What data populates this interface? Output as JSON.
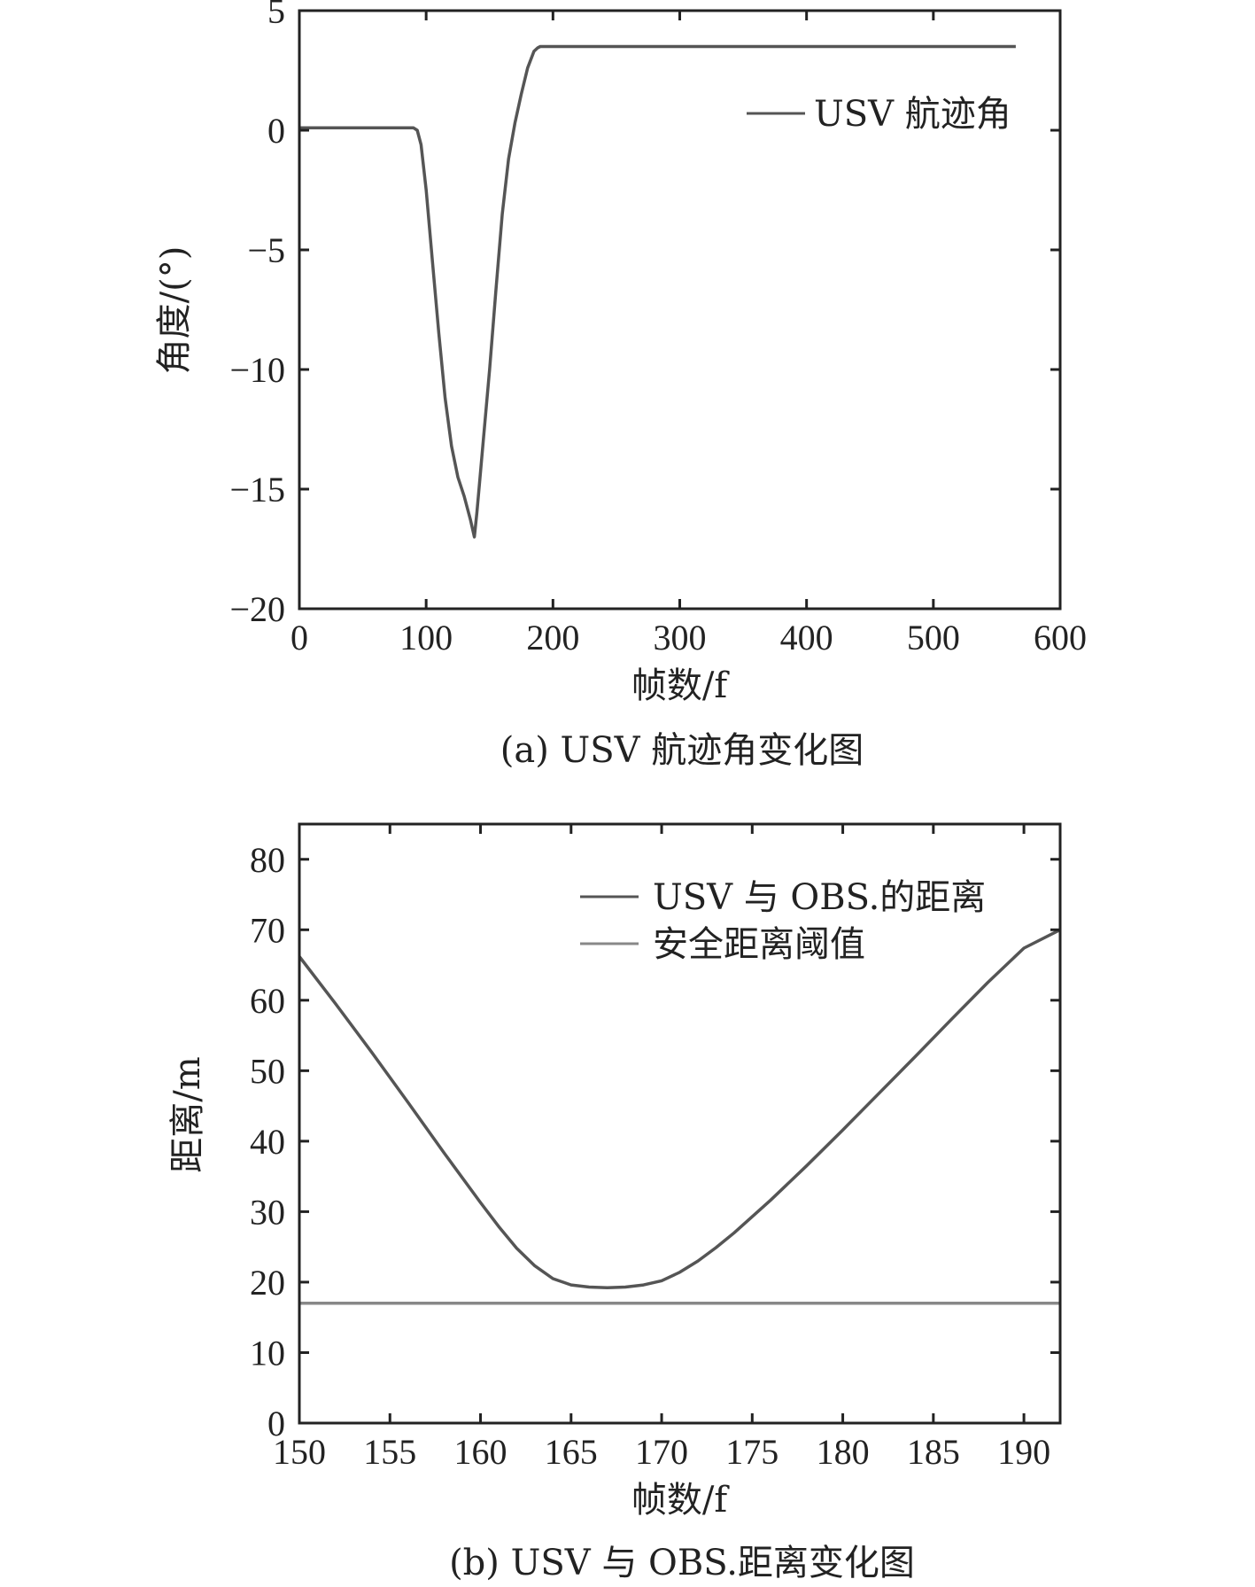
{
  "chart_data": [
    {
      "type": "line",
      "caption": "(a) USV 航迹角变化图",
      "xlabel": "帧数/f",
      "ylabel": "角度/(°)",
      "xlim": [
        0,
        600
      ],
      "ylim": [
        -20,
        5
      ],
      "xticks": [
        0,
        100,
        200,
        300,
        400,
        500,
        600
      ],
      "yticks": [
        -20,
        -15,
        -10,
        -5,
        0,
        5
      ],
      "xtick_labels": [
        "0",
        "100",
        "200",
        "300",
        "400",
        "500",
        "600"
      ],
      "ytick_labels": [
        "−20",
        "−15",
        "−10",
        "−5",
        "0",
        "5"
      ],
      "grid": false,
      "legend_position": "top-right",
      "colors": {
        "line": "#555555"
      },
      "series": [
        {
          "name": "USV 航迹角",
          "x": [
            0,
            88,
            90,
            93,
            96,
            100,
            105,
            110,
            115,
            120,
            125,
            130,
            135,
            138,
            140,
            142,
            145,
            150,
            155,
            160,
            165,
            170,
            175,
            180,
            185,
            188,
            190,
            192,
            200,
            250,
            300,
            400,
            500,
            565
          ],
          "y": [
            0.1,
            0.1,
            0.1,
            0.0,
            -0.6,
            -2.5,
            -5.5,
            -8.5,
            -11.2,
            -13.2,
            -14.5,
            -15.3,
            -16.3,
            -17.0,
            -16.0,
            -14.8,
            -13.0,
            -10.0,
            -6.7,
            -3.5,
            -1.2,
            0.3,
            1.5,
            2.6,
            3.3,
            3.45,
            3.5,
            3.5,
            3.5,
            3.5,
            3.5,
            3.5,
            3.5,
            3.5
          ]
        }
      ]
    },
    {
      "type": "line",
      "caption": "(b) USV 与 OBS.距离变化图",
      "xlabel": "帧数/f",
      "ylabel": "距离/m",
      "xlim": [
        150,
        192
      ],
      "ylim": [
        0,
        85
      ],
      "xticks": [
        150,
        155,
        160,
        165,
        170,
        175,
        180,
        185,
        190
      ],
      "yticks": [
        0,
        10,
        20,
        30,
        40,
        50,
        60,
        70,
        80
      ],
      "xtick_labels": [
        "150",
        "155",
        "160",
        "165",
        "170",
        "175",
        "180",
        "185",
        "190"
      ],
      "ytick_labels": [
        "0",
        "10",
        "20",
        "30",
        "40",
        "50",
        "60",
        "70",
        "80"
      ],
      "grid": false,
      "legend_position": "top-right",
      "colors": {
        "distance": "#555555",
        "threshold": "#888888"
      },
      "series": [
        {
          "name": "USV 与 OBS.的距离",
          "x": [
            150,
            152,
            154,
            156,
            158,
            160,
            161,
            162,
            163,
            164,
            165,
            166,
            167,
            168,
            169,
            170,
            171,
            172,
            173,
            174,
            176,
            178,
            180,
            182,
            184,
            186,
            188,
            190,
            192
          ],
          "y": [
            66.2,
            59.5,
            52.6,
            45.5,
            38.3,
            31.3,
            27.9,
            24.8,
            22.3,
            20.5,
            19.6,
            19.3,
            19.2,
            19.3,
            19.6,
            20.2,
            21.4,
            23.0,
            24.9,
            27.0,
            31.6,
            36.5,
            41.6,
            46.8,
            52.0,
            57.3,
            62.5,
            67.4,
            70.0
          ]
        },
        {
          "name": "安全距离阈值",
          "x": [
            150,
            192
          ],
          "y": [
            17,
            17
          ]
        }
      ]
    }
  ]
}
